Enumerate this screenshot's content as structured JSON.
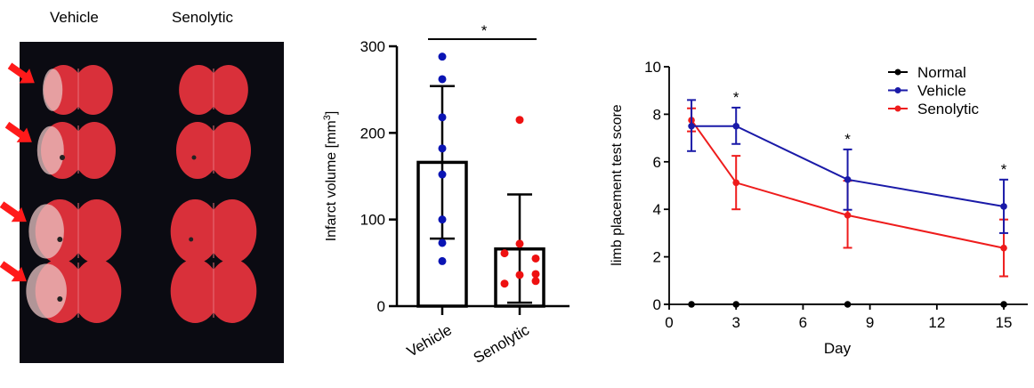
{
  "photo_panel": {
    "column_labels": [
      "Vehicle",
      "Senolytic"
    ],
    "rows": 4,
    "arrow_color": "#ff1a1a",
    "tissue_color": "#d9303a",
    "infarct_color": "#eac4c4",
    "background_color": "#0b0b12"
  },
  "chart_data": [
    {
      "type": "bar",
      "title": "",
      "xlabel": "",
      "ylabel": "Infarct volume [mm³]",
      "ylabel_base": "Infarct volume [mm",
      "ylabel_sup": "3",
      "ylabel_end": "]",
      "ylim": [
        0,
        300
      ],
      "yticks": [
        0,
        100,
        200,
        300
      ],
      "categories": [
        "Vehicle",
        "Senolytic"
      ],
      "values": [
        166,
        66
      ],
      "error_bars": [
        [
          78,
          254
        ],
        [
          4,
          129
        ]
      ],
      "points": [
        [
          288,
          262,
          218,
          182,
          152,
          100,
          73,
          52
        ],
        [
          215,
          72,
          61,
          55,
          36,
          37,
          29,
          26
        ]
      ],
      "point_colors": [
        "#0a14b4",
        "#ee1111"
      ],
      "significance": "*",
      "grid": false
    },
    {
      "type": "line",
      "title": "",
      "xlabel": "Day",
      "ylabel": "limb placement test score",
      "xlim": [
        0,
        16
      ],
      "ylim": [
        0,
        10
      ],
      "xticks": [
        0,
        3,
        6,
        9,
        12,
        15
      ],
      "yticks": [
        0,
        2,
        4,
        6,
        8,
        10
      ],
      "x": [
        1,
        3,
        8,
        15
      ],
      "series": [
        {
          "name": "Normal",
          "color": "#000000",
          "values": [
            0,
            0,
            0,
            0
          ],
          "err_low": [
            0,
            0,
            0,
            0
          ],
          "err_high": [
            0,
            0,
            0,
            0
          ]
        },
        {
          "name": "Vehicle",
          "color": "#1a1aa8",
          "values": [
            7.5,
            7.5,
            5.25,
            4.12
          ],
          "err_low": [
            6.45,
            6.75,
            3.98,
            3.0
          ],
          "err_high": [
            8.6,
            8.28,
            6.52,
            5.25
          ]
        },
        {
          "name": "Senolytic",
          "color": "#ee1c1c",
          "values": [
            7.75,
            5.12,
            3.75,
            2.37
          ],
          "err_low": [
            7.28,
            4.0,
            2.38,
            1.18
          ],
          "err_high": [
            8.25,
            6.25,
            5.2,
            3.57
          ]
        }
      ],
      "significance_marks": [
        {
          "x": 3,
          "label": "*"
        },
        {
          "x": 8,
          "label": "*"
        },
        {
          "x": 15,
          "label": "*"
        }
      ],
      "legend_position": "top-right",
      "grid": false
    }
  ]
}
